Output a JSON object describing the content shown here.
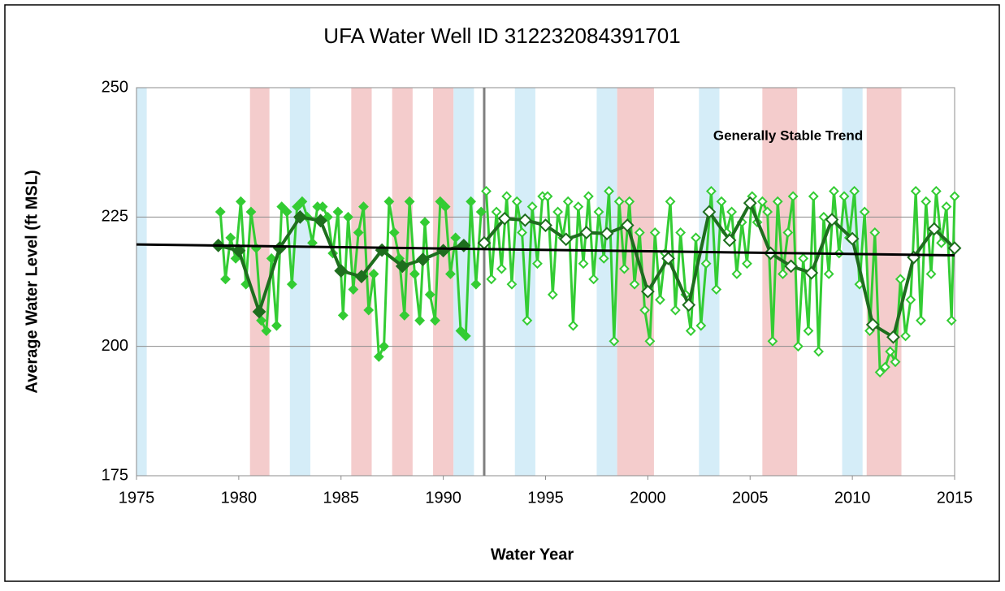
{
  "chart_data": {
    "type": "line",
    "title": "UFA Water Well ID 312232084391701",
    "x_label": "Water Year",
    "y_label": "Average Water Level (ft MSL)",
    "annotation": "Generally Stable Trend",
    "xlim": [
      1975,
      2015
    ],
    "xticks": [
      1975,
      1980,
      1985,
      1990,
      1995,
      2000,
      2005,
      2010,
      2015
    ],
    "ylim": [
      175,
      250
    ],
    "yticks": [
      175,
      200,
      225,
      250
    ],
    "grid": true,
    "divider_x": 1992,
    "divider_color": "#7f7f7f",
    "bands": [
      {
        "from": 1975,
        "to": 1975.5,
        "color": "#d5edf8"
      },
      {
        "from": 1980.55,
        "to": 1981.5,
        "color": "#f4cccc"
      },
      {
        "from": 1982.5,
        "to": 1983.5,
        "color": "#d5edf8"
      },
      {
        "from": 1985.5,
        "to": 1986.5,
        "color": "#f4cccc"
      },
      {
        "from": 1987.5,
        "to": 1988.5,
        "color": "#f4cccc"
      },
      {
        "from": 1989.5,
        "to": 1990.5,
        "color": "#f4cccc"
      },
      {
        "from": 1990.5,
        "to": 1991.5,
        "color": "#d5edf8"
      },
      {
        "from": 1993.5,
        "to": 1994.5,
        "color": "#d5edf8"
      },
      {
        "from": 1997.5,
        "to": 1998.5,
        "color": "#d5edf8"
      },
      {
        "from": 1998.5,
        "to": 2000.3,
        "color": "#f4cccc"
      },
      {
        "from": 2002.5,
        "to": 2003.5,
        "color": "#d5edf8"
      },
      {
        "from": 2005.6,
        "to": 2007.3,
        "color": "#f4cccc"
      },
      {
        "from": 2009.5,
        "to": 2010.5,
        "color": "#d5edf8"
      },
      {
        "from": 2010.7,
        "to": 2012.4,
        "color": "#f4cccc"
      }
    ],
    "trend": {
      "x": [
        1975,
        2015
      ],
      "values": [
        219.7,
        217.6
      ],
      "color": "#000000"
    },
    "series": [
      {
        "color": "#33cc33",
        "marker": "filled",
        "size": 5,
        "x": [
          1979.1,
          1979.35,
          1979.6,
          1979.85,
          1980.1,
          1980.35,
          1980.6,
          1980.85,
          1981.1,
          1981.35,
          1981.6,
          1981.85,
          1982.1,
          1982.35,
          1982.6,
          1982.85,
          1983.1,
          1983.35,
          1983.6,
          1983.85,
          1984.1,
          1984.35,
          1984.6,
          1984.85,
          1985.1,
          1985.35,
          1985.6,
          1985.85,
          1986.1,
          1986.35,
          1986.6,
          1986.85,
          1987.1,
          1987.35,
          1987.6,
          1987.85,
          1988.1,
          1988.35,
          1988.6,
          1988.85,
          1989.1,
          1989.35,
          1989.6,
          1989.85,
          1990.1,
          1990.35,
          1990.6,
          1990.85,
          1991.1,
          1991.35,
          1991.6,
          1991.85
        ],
        "values": [
          226,
          213,
          221,
          217,
          228,
          212,
          226,
          219,
          205,
          203,
          217,
          204,
          227,
          226,
          212,
          227,
          228,
          225,
          220,
          227,
          227,
          225,
          218,
          226,
          206,
          225,
          211,
          222,
          227,
          207,
          214,
          198,
          200,
          228,
          222,
          217,
          206,
          228,
          214,
          205,
          224,
          210,
          205,
          228,
          227,
          214,
          221,
          203,
          202,
          228,
          212,
          226
        ]
      },
      {
        "color": "#33cc33",
        "marker": "open",
        "size": 5,
        "x": [
          1992.1,
          1992.35,
          1992.6,
          1992.85,
          1993.1,
          1993.35,
          1993.6,
          1993.85,
          1994.1,
          1994.35,
          1994.6,
          1994.85,
          1995.1,
          1995.35,
          1995.6,
          1995.85,
          1996.1,
          1996.35,
          1996.6,
          1996.85,
          1997.1,
          1997.35,
          1997.6,
          1997.85,
          1998.1,
          1998.35,
          1998.6,
          1998.85,
          1999.1,
          1999.35,
          1999.6,
          1999.85,
          2000.1,
          2000.35,
          2000.6,
          2000.85,
          2001.1,
          2001.35,
          2001.6,
          2001.85,
          2002.1,
          2002.35,
          2002.6,
          2002.85,
          2003.1,
          2003.35,
          2003.6,
          2003.85,
          2004.1,
          2004.35,
          2004.6,
          2004.85,
          2005.1,
          2005.35,
          2005.6,
          2005.85,
          2006.1,
          2006.35,
          2006.6,
          2006.85,
          2007.1,
          2007.35,
          2007.6,
          2007.85,
          2008.1,
          2008.35,
          2008.6,
          2008.85,
          2009.1,
          2009.35,
          2009.6,
          2009.85,
          2010.1,
          2010.35,
          2010.6,
          2010.85,
          2011.1,
          2011.35,
          2011.6,
          2011.85,
          2012.1,
          2012.35,
          2012.6,
          2012.85,
          2013.1,
          2013.35,
          2013.6,
          2013.85,
          2014.1,
          2014.35,
          2014.6,
          2014.85,
          2015
        ],
        "values": [
          230,
          213,
          226,
          215,
          229,
          212,
          228,
          222,
          205,
          227,
          216,
          229,
          229,
          210,
          226,
          221,
          228,
          204,
          227,
          216,
          229,
          213,
          226,
          217,
          230,
          201,
          228,
          215,
          228,
          212,
          222,
          207,
          201,
          222,
          209,
          218,
          228,
          207,
          222,
          210,
          203,
          221,
          204,
          216,
          230,
          211,
          228,
          222,
          226,
          214,
          224,
          216,
          229,
          224,
          228,
          226,
          201,
          228,
          214,
          222,
          229,
          200,
          217,
          203,
          229,
          199,
          225,
          214,
          230,
          218,
          229,
          221,
          230,
          212,
          226,
          203,
          222,
          195,
          196,
          199,
          197,
          213,
          202,
          209,
          230,
          205,
          228,
          214,
          230,
          220,
          227,
          205,
          229
        ]
      },
      {
        "color": "#1e6e1e",
        "marker": "filled",
        "size": 7,
        "x": [
          1979,
          1980,
          1981,
          1982,
          1983,
          1984,
          1985,
          1986,
          1987,
          1988,
          1989,
          1990,
          1991
        ],
        "values": [
          219.5,
          218.5,
          206.7,
          219,
          225,
          224.3,
          214.6,
          213.5,
          218.6,
          215.5,
          216.8,
          218.5,
          219.5
        ]
      },
      {
        "color": "#1e6e1e",
        "marker": "open",
        "size": 7,
        "x": [
          1992,
          1993,
          1994,
          1995,
          1996,
          1997,
          1998,
          1999,
          2000,
          2001,
          2002,
          2003,
          2004,
          2005,
          2006,
          2007,
          2008,
          2009,
          2010,
          2011,
          2012,
          2013,
          2014,
          2015
        ],
        "values": [
          220,
          224.7,
          224.4,
          223.4,
          220.7,
          222,
          221.8,
          223.4,
          210.6,
          217,
          208,
          226,
          220.5,
          227.7,
          218,
          215.5,
          214.2,
          224.5,
          220.8,
          204.2,
          201.8,
          217.2,
          222.7,
          219
        ]
      }
    ]
  }
}
